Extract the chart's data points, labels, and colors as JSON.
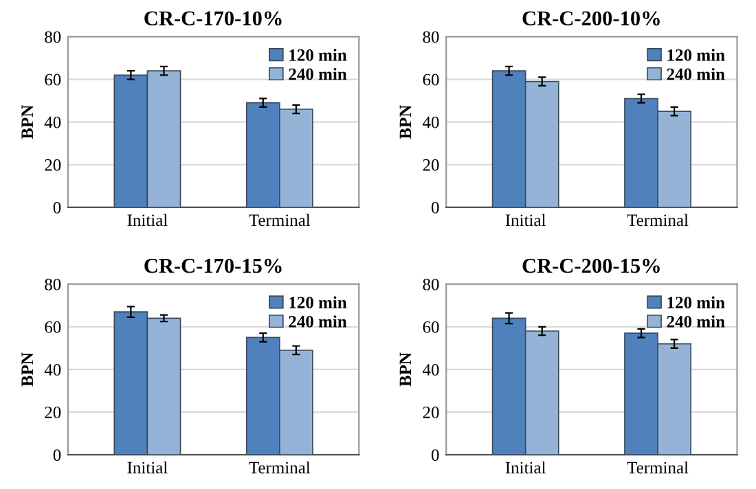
{
  "chart_data": [
    {
      "type": "bar",
      "title": "CR-C-170-10%",
      "ylabel": "BPN",
      "categories": [
        "Initial",
        "Terminal"
      ],
      "ylim": [
        0,
        80
      ],
      "yticks": [
        0,
        20,
        40,
        60,
        80
      ],
      "grid": "y",
      "legend": "top right",
      "series": [
        {
          "name": "120 min",
          "color": "#4f81bd",
          "values": [
            62,
            49
          ],
          "errors": [
            2,
            2
          ]
        },
        {
          "name": "240 min",
          "color": "#95b3d7",
          "values": [
            64,
            46
          ],
          "errors": [
            2,
            2
          ]
        }
      ]
    },
    {
      "type": "bar",
      "title": "CR-C-200-10%",
      "ylabel": "BPN",
      "categories": [
        "Initial",
        "Terminal"
      ],
      "ylim": [
        0,
        80
      ],
      "yticks": [
        0,
        20,
        40,
        60,
        80
      ],
      "grid": "y",
      "legend": "top right",
      "series": [
        {
          "name": "120 min",
          "color": "#4f81bd",
          "values": [
            64,
            51
          ],
          "errors": [
            2,
            2
          ]
        },
        {
          "name": "240 min",
          "color": "#95b3d7",
          "values": [
            59,
            45
          ],
          "errors": [
            2,
            2
          ]
        }
      ]
    },
    {
      "type": "bar",
      "title": "CR-C-170-15%",
      "ylabel": "BPN",
      "categories": [
        "Initial",
        "Terminal"
      ],
      "ylim": [
        0,
        80
      ],
      "yticks": [
        0,
        20,
        40,
        60,
        80
      ],
      "grid": "y",
      "legend": "top right",
      "series": [
        {
          "name": "120 min",
          "color": "#4f81bd",
          "values": [
            67,
            55
          ],
          "errors": [
            2.5,
            2
          ]
        },
        {
          "name": "240 min",
          "color": "#95b3d7",
          "values": [
            64,
            49
          ],
          "errors": [
            1.5,
            2
          ]
        }
      ]
    },
    {
      "type": "bar",
      "title": "CR-C-200-15%",
      "ylabel": "BPN",
      "categories": [
        "Initial",
        "Terminal"
      ],
      "ylim": [
        0,
        80
      ],
      "yticks": [
        0,
        20,
        40,
        60,
        80
      ],
      "grid": "y",
      "legend": "top right",
      "series": [
        {
          "name": "120 min",
          "color": "#4f81bd",
          "values": [
            64,
            57
          ],
          "errors": [
            2.5,
            2
          ]
        },
        {
          "name": "240 min",
          "color": "#95b3d7",
          "values": [
            58,
            52
          ],
          "errors": [
            2,
            2
          ]
        }
      ]
    }
  ]
}
